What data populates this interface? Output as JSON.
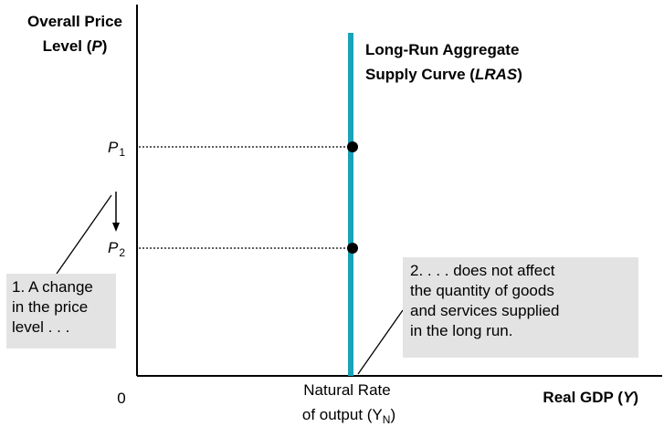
{
  "diagram": {
    "y_axis_title_line1": "Overall Price",
    "y_axis_title_line2_prefix": "Level (",
    "y_axis_title_line2_var": "P",
    "y_axis_title_line2_suffix": ")",
    "x_axis_title_prefix": "Real GDP (",
    "x_axis_title_var": "Y",
    "x_axis_title_suffix": ")",
    "origin_label": "0",
    "curve_label_line1": "Long-Run Aggregate",
    "curve_label_line2_prefix": "Supply Curve (",
    "curve_label_line2_var": "LRAS",
    "curve_label_line2_suffix": ")",
    "p1_letter": "P",
    "p1_sub": "1",
    "p2_letter": "P",
    "p2_sub": "2",
    "natural_rate_line1": "Natural Rate",
    "natural_rate_line2_prefix": "of output (Y",
    "natural_rate_line2_sub": "N",
    "natural_rate_line2_suffix": ")",
    "colors": {
      "lras_curve": "#1aa3b8",
      "note_box_bg": "#e3e3e3",
      "axis": "#000000"
    }
  },
  "notes": {
    "left": [
      "1. A change",
      "in the price",
      "level . . ."
    ],
    "right": [
      "2.  . . . does not affect",
      "the quantity of goods",
      "and services supplied",
      "in the long run."
    ]
  }
}
